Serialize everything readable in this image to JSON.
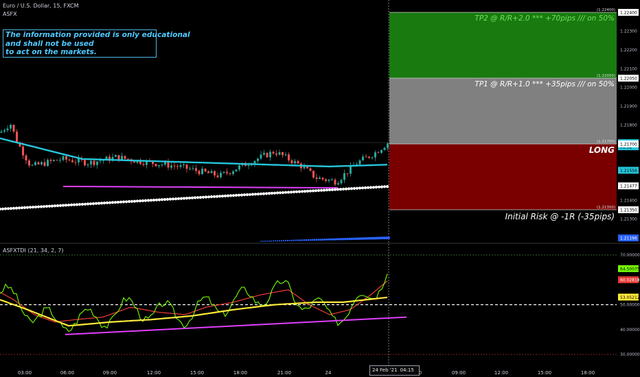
{
  "header": {
    "symbol_title": "Euro / U.S. Dollar, 15, FXCM",
    "study_name": "ASFX",
    "indicator_title": "ASFXTDI (21, 34, 2, 7)"
  },
  "disclaimer": {
    "lines": [
      "The information provided is only educational",
      "and shall not be used",
      "to act on the markets."
    ]
  },
  "trade_boxes": {
    "tp2_label": "TP2 @ R/R+2.0 *** +70pips /// on 50%",
    "tp1_label": "TP1 @ R/R+1.0 *** +35pips /// on 50%",
    "long_label": "LONG",
    "risk_label": "Initial Risk @ -1R (-35pips)",
    "tp2_price": 1.224,
    "tp1_price": 1.2205,
    "entry_price": 1.217,
    "stop_price": 1.2135,
    "tp2_price_text": "(1.22400)",
    "tp1_price_text": "(1.22050)",
    "entry_price_text": "(1.21700)",
    "stop_price_text": "(1.21350)"
  },
  "price_axis": {
    "ticks": [
      "1.22300",
      "1.22200",
      "1.22100",
      "1.22000",
      "1.21900",
      "1.21800",
      "1.21700",
      "1.21400",
      "1.21300"
    ],
    "tags": [
      {
        "text": "1.22400",
        "value": 1.224,
        "bg": "#ffffff",
        "fg": "#000000"
      },
      {
        "text": "1.22050",
        "value": 1.2205,
        "bg": "#ffffff",
        "fg": "#000000"
      },
      {
        "text": "1.21707",
        "value": 1.21707,
        "bg": "#26c6da",
        "fg": "#000000"
      },
      {
        "text": "01:32",
        "value": 1.21685,
        "bg": "#26c6da",
        "fg": "#000000"
      },
      {
        "text": "1.21700",
        "value": 1.217,
        "bg": "#ffffff",
        "fg": "#000000"
      },
      {
        "text": "1.21556",
        "value": 1.2156,
        "bg": "#26c6da",
        "fg": "#000000"
      },
      {
        "text": "1.21477",
        "value": 1.21477,
        "bg": "#ffffff",
        "fg": "#000000"
      },
      {
        "text": "1.21350",
        "value": 1.2135,
        "bg": "#ffffff",
        "fg": "#000000"
      },
      {
        "text": "1.21196",
        "value": 1.212,
        "bg": "#2962ff",
        "fg": "#ffffff"
      }
    ]
  },
  "indicator_axis": {
    "ticks": [
      "70.00000",
      "50.00000",
      "40.00000",
      "30.00000"
    ],
    "tags": [
      {
        "text": "64.50075",
        "value": 64.5,
        "bg": "#76ff03",
        "fg": "#000000"
      },
      {
        "text": "60.02818",
        "value": 60.03,
        "bg": "#e53935",
        "fg": "#ffffff"
      },
      {
        "text": "53.05212",
        "value": 53.05,
        "bg": "#ffeb3b",
        "fg": "#000000"
      }
    ]
  },
  "time_axis": {
    "labels": [
      "03:00",
      "06:00",
      "09:00",
      "12:00",
      "15:00",
      "18:00",
      "21:00",
      "24",
      "06:00",
      "09:00",
      "12:00",
      "15:00",
      "18:00"
    ],
    "cursor_date": "24 Feb '21",
    "cursor_time": "04:15"
  },
  "colors": {
    "tp2_fill": "#197a10",
    "tp1_fill": "#808080",
    "risk_fill": "#7a0000",
    "candle_up": "#26a69a",
    "candle_down": "#ef5350",
    "ema_line": "#26c6da",
    "dots": "#ffffff",
    "support_line": "#e040fb",
    "tdi_green": "#76ff03",
    "tdi_red": "#e53935",
    "tdi_yellow": "#ffeb3b"
  }
}
